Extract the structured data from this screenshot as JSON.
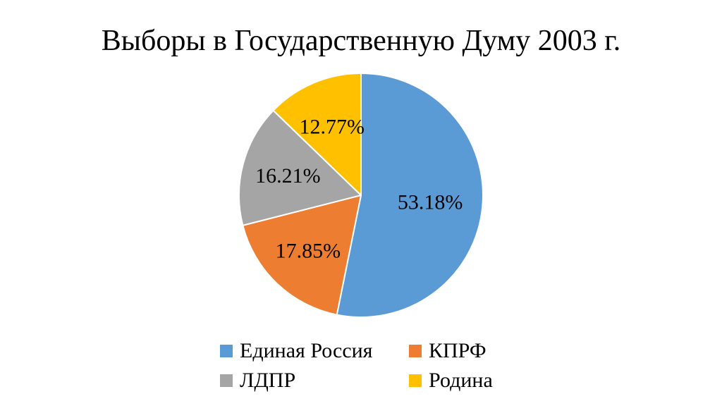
{
  "chart_data": {
    "type": "pie",
    "title": "Выборы в Государственную Думу 2003 г.",
    "slices": [
      {
        "name": "Единая Россия",
        "value": 53.18,
        "label": "53.18%",
        "color": "#5B9BD5"
      },
      {
        "name": "КПРФ",
        "value": 17.85,
        "label": "17.85%",
        "color": "#ED7D31"
      },
      {
        "name": "ЛДПР",
        "value": 16.21,
        "label": "16.21%",
        "color": "#A5A5A5"
      },
      {
        "name": "Родина",
        "value": 12.77,
        "label": "12.77%",
        "color": "#FFC000"
      }
    ],
    "start_angle": "12 o'clock",
    "direction": "clockwise",
    "legend": {
      "position": "bottom",
      "columns": 2
    }
  }
}
